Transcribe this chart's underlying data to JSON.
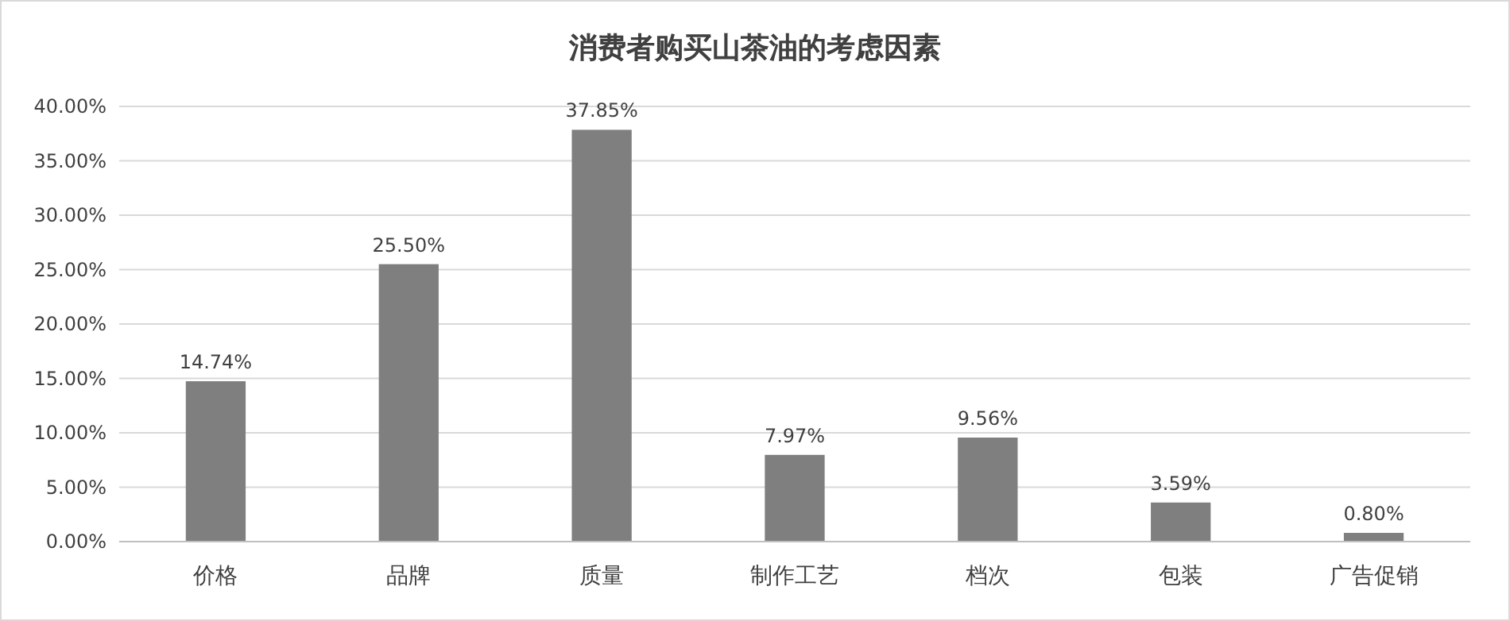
{
  "chart_data": {
    "type": "bar",
    "title": "消费者购买山茶油的考虑因素",
    "categories": [
      "价格",
      "品牌",
      "质量",
      "制作工艺",
      "档次",
      "包装",
      "广告促销"
    ],
    "values": [
      14.74,
      25.5,
      37.85,
      7.97,
      9.56,
      3.59,
      0.8
    ],
    "value_labels": [
      "14.74%",
      "25.50%",
      "37.85%",
      "7.97%",
      "9.56%",
      "3.59%",
      "0.80%"
    ],
    "color": "#7f7f7f",
    "ylim": [
      0,
      40
    ],
    "yticks": [
      {
        "value": 0,
        "label": "0.00%"
      },
      {
        "value": 5,
        "label": "5.00%"
      },
      {
        "value": 10,
        "label": "10.00%"
      },
      {
        "value": 15,
        "label": "15.00%"
      },
      {
        "value": 20,
        "label": "20.00%"
      },
      {
        "value": 25,
        "label": "25.00%"
      },
      {
        "value": 30,
        "label": "30.00%"
      },
      {
        "value": 35,
        "label": "35.00%"
      },
      {
        "value": 40,
        "label": "40.00%"
      }
    ],
    "grid": "y"
  }
}
